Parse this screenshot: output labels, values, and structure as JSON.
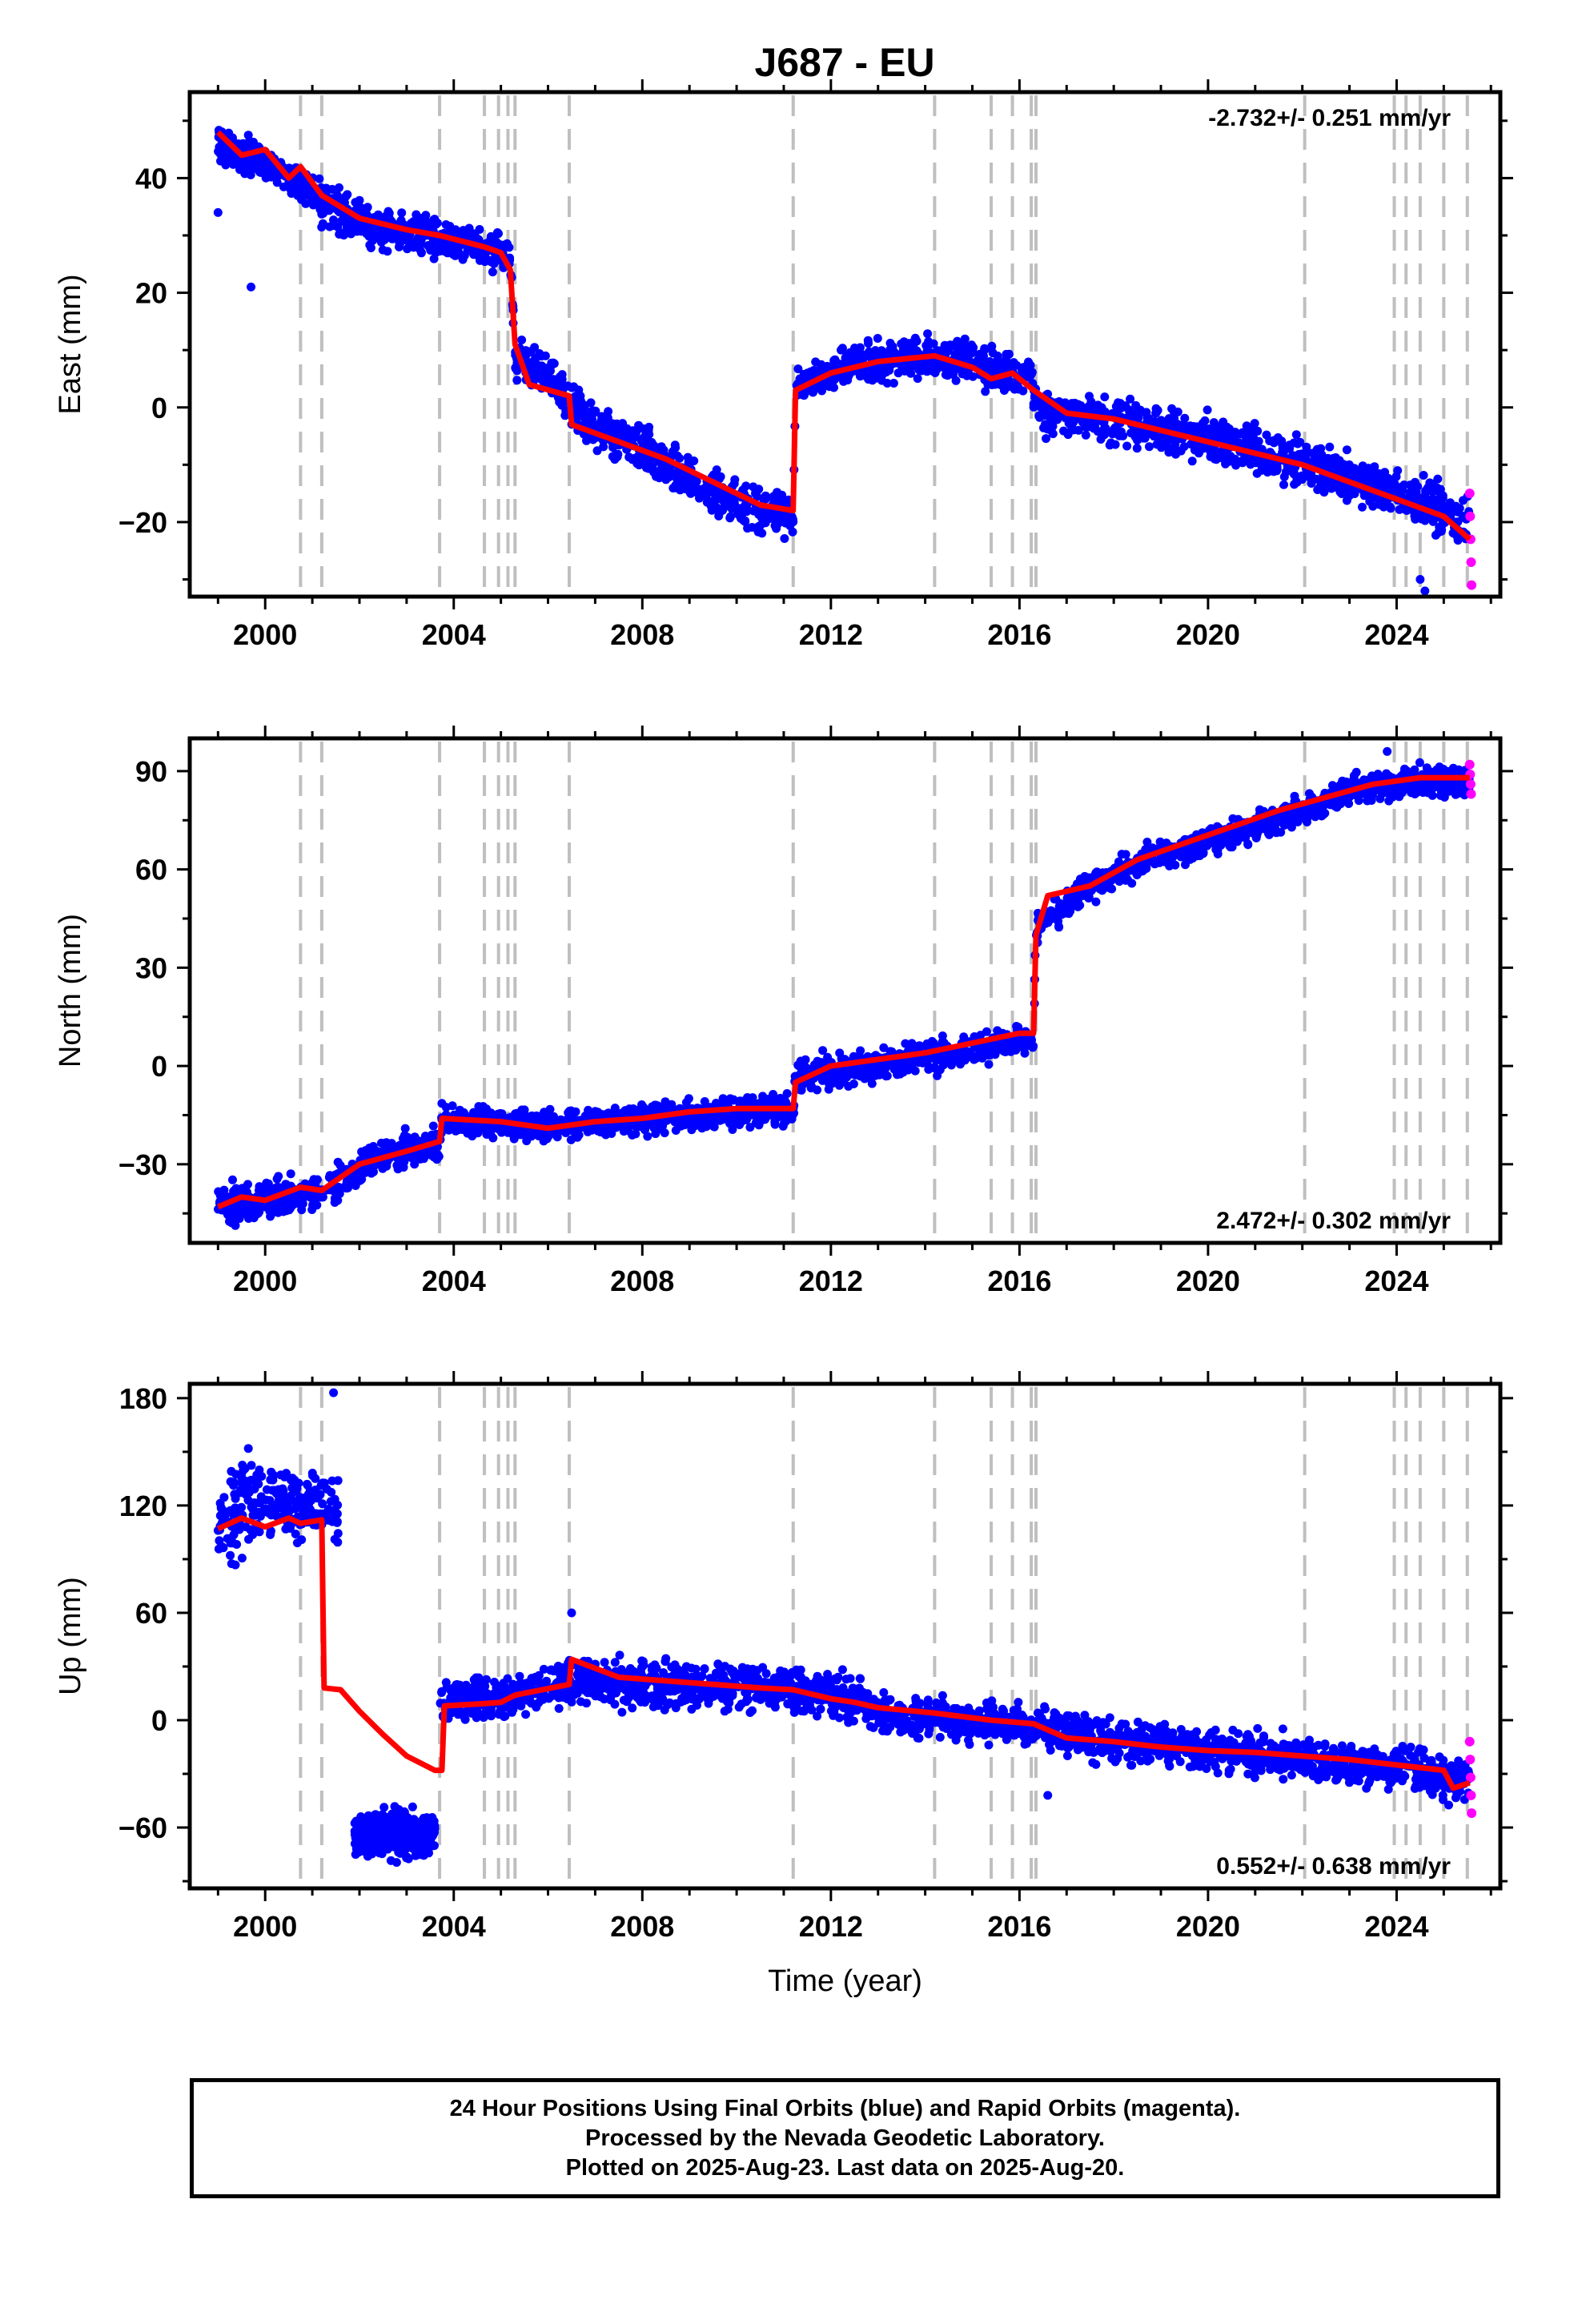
{
  "title": "J687 - EU",
  "colors": {
    "final": "#0000ff",
    "rapid": "#ff00ff",
    "model": "#ff0000",
    "events": "#bfbfbf",
    "frame": "#000000"
  },
  "footer": {
    "line1": "24 Hour Positions Using Final Orbits (blue) and Rapid Orbits (magenta).",
    "line2": "Processed by the Nevada Geodetic Laboratory.",
    "line3": "Plotted on 2025-Aug-23. Last data on 2025-Aug-20."
  },
  "chart_data": [
    {
      "type": "scatter",
      "component": "east",
      "ylabel": "East (mm)",
      "xlabel": "",
      "rate": "-2.732+/- 0.251 mm/yr",
      "rate_position": "top-right",
      "xlim": [
        1998.4,
        2026.2
      ],
      "ylim": [
        -33,
        55
      ],
      "xticks": [
        2000,
        2004,
        2008,
        2012,
        2016,
        2020,
        2024
      ],
      "yticks": [
        -20,
        0,
        20,
        40
      ],
      "ytick_labels": [
        "−20",
        "0",
        "20",
        "40"
      ],
      "events": [
        2000.75,
        2001.2,
        2003.7,
        2004.65,
        2004.95,
        2005.15,
        2005.3,
        2006.45,
        2011.2,
        2014.2,
        2015.4,
        2015.85,
        2016.25,
        2016.35,
        2022.05,
        2023.95,
        2024.2,
        2024.5,
        2025.0,
        2025.5
      ],
      "model": [
        [
          1999.0,
          48
        ],
        [
          1999.5,
          44
        ],
        [
          2000.0,
          45
        ],
        [
          2000.5,
          40
        ],
        [
          2000.75,
          42
        ],
        [
          2001.2,
          37
        ],
        [
          2002.0,
          33
        ],
        [
          2003.0,
          31
        ],
        [
          2003.7,
          30
        ],
        [
          2004.65,
          28
        ],
        [
          2005.0,
          27
        ],
        [
          2005.2,
          24
        ],
        [
          2005.3,
          11
        ],
        [
          2005.6,
          4
        ],
        [
          2006.45,
          2
        ],
        [
          2006.5,
          -3
        ],
        [
          2007.5,
          -6
        ],
        [
          2008.5,
          -9
        ],
        [
          2009.5,
          -13
        ],
        [
          2010.5,
          -17
        ],
        [
          2011.2,
          -18
        ],
        [
          2011.25,
          3
        ],
        [
          2012.0,
          6
        ],
        [
          2013.0,
          8
        ],
        [
          2014.2,
          9
        ],
        [
          2015.0,
          7
        ],
        [
          2015.4,
          5
        ],
        [
          2015.85,
          6
        ],
        [
          2016.3,
          3
        ],
        [
          2017.0,
          -1
        ],
        [
          2018.0,
          -2
        ],
        [
          2019.0,
          -4
        ],
        [
          2020.0,
          -6
        ],
        [
          2021.0,
          -8
        ],
        [
          2022.0,
          -10
        ],
        [
          2023.0,
          -13
        ],
        [
          2024.0,
          -16
        ],
        [
          2025.0,
          -19
        ],
        [
          2025.55,
          -23
        ]
      ],
      "data_envelope": [
        [
          1999.0,
          51,
          41
        ],
        [
          2000.0,
          47,
          38
        ],
        [
          2000.75,
          43,
          34
        ],
        [
          2001.2,
          41,
          30
        ],
        [
          2002.5,
          36,
          26
        ],
        [
          2004.0,
          34,
          24
        ],
        [
          2005.2,
          31,
          22
        ],
        [
          2005.3,
          14,
          4
        ],
        [
          2006.0,
          10,
          0
        ],
        [
          2007.0,
          2,
          -9
        ],
        [
          2008.0,
          -2,
          -13
        ],
        [
          2009.0,
          -7,
          -18
        ],
        [
          2010.0,
          -11,
          -23
        ],
        [
          2011.2,
          -14,
          -24
        ],
        [
          2011.25,
          7,
          0
        ],
        [
          2012.5,
          12,
          3
        ],
        [
          2014.0,
          14,
          4
        ],
        [
          2015.0,
          13,
          3
        ],
        [
          2016.3,
          9,
          -1
        ],
        [
          2016.4,
          5,
          -6
        ],
        [
          2018.0,
          3,
          -8
        ],
        [
          2020.0,
          1,
          -11
        ],
        [
          2022.0,
          -4,
          -15
        ],
        [
          2024.0,
          -9,
          -21
        ],
        [
          2025.55,
          -13,
          -27
        ]
      ],
      "rapid_points": [
        [
          2025.55,
          -15
        ],
        [
          2025.56,
          -19
        ],
        [
          2025.57,
          -23
        ],
        [
          2025.58,
          -27
        ],
        [
          2025.59,
          -31
        ]
      ],
      "outliers": [
        [
          1999.0,
          34
        ],
        [
          1999.7,
          21
        ],
        [
          2024.5,
          -30
        ],
        [
          2024.6,
          -32
        ]
      ]
    },
    {
      "type": "scatter",
      "component": "north",
      "ylabel": "North (mm)",
      "xlabel": "",
      "rate": "2.472+/- 0.302 mm/yr",
      "rate_position": "bottom-right",
      "xlim": [
        1998.4,
        2026.2
      ],
      "ylim": [
        -54,
        100
      ],
      "xticks": [
        2000,
        2004,
        2008,
        2012,
        2016,
        2020,
        2024
      ],
      "yticks": [
        -30,
        0,
        30,
        60,
        90
      ],
      "ytick_labels": [
        "−30",
        "0",
        "30",
        "60",
        "90"
      ],
      "events": [
        2000.75,
        2001.2,
        2003.7,
        2004.65,
        2004.95,
        2005.15,
        2005.3,
        2006.45,
        2011.2,
        2014.2,
        2015.4,
        2015.85,
        2016.25,
        2016.35,
        2022.05,
        2023.95,
        2024.2,
        2024.5,
        2025.0,
        2025.5
      ],
      "model": [
        [
          1999.0,
          -43
        ],
        [
          1999.5,
          -40
        ],
        [
          2000.0,
          -41
        ],
        [
          2000.75,
          -37
        ],
        [
          2001.2,
          -38
        ],
        [
          2002.0,
          -30
        ],
        [
          2003.0,
          -26
        ],
        [
          2003.7,
          -23
        ],
        [
          2003.75,
          -16
        ],
        [
          2005.0,
          -17
        ],
        [
          2006.0,
          -19
        ],
        [
          2007.0,
          -17
        ],
        [
          2008.0,
          -16
        ],
        [
          2009.0,
          -14
        ],
        [
          2010.0,
          -13
        ],
        [
          2011.2,
          -13
        ],
        [
          2011.25,
          -5
        ],
        [
          2012.0,
          0
        ],
        [
          2013.0,
          2
        ],
        [
          2014.0,
          4
        ],
        [
          2015.0,
          7
        ],
        [
          2016.0,
          10
        ],
        [
          2016.3,
          10
        ],
        [
          2016.35,
          40
        ],
        [
          2016.6,
          52
        ],
        [
          2017.5,
          55
        ],
        [
          2018.5,
          63
        ],
        [
          2019.5,
          68
        ],
        [
          2020.5,
          73
        ],
        [
          2021.5,
          78
        ],
        [
          2022.5,
          82
        ],
        [
          2023.5,
          86
        ],
        [
          2024.5,
          88
        ],
        [
          2025.55,
          88
        ]
      ],
      "data_envelope": [
        [
          1999.0,
          -34,
          -50
        ],
        [
          2000.0,
          -33,
          -50
        ],
        [
          2001.2,
          -31,
          -46
        ],
        [
          2002.5,
          -20,
          -35
        ],
        [
          2003.7,
          -17,
          -31
        ],
        [
          2003.75,
          -10,
          -23
        ],
        [
          2006.0,
          -12,
          -25
        ],
        [
          2008.0,
          -10,
          -22
        ],
        [
          2010.0,
          -7,
          -20
        ],
        [
          2011.2,
          -7,
          -20
        ],
        [
          2011.25,
          4,
          -10
        ],
        [
          2013.0,
          7,
          -6
        ],
        [
          2015.0,
          12,
          -2
        ],
        [
          2016.3,
          14,
          3
        ],
        [
          2016.35,
          50,
          35
        ],
        [
          2017.5,
          61,
          49
        ],
        [
          2019.0,
          71,
          58
        ],
        [
          2021.0,
          79,
          66
        ],
        [
          2023.0,
          90,
          78
        ],
        [
          2024.5,
          94,
          80
        ],
        [
          2025.55,
          93,
          80
        ]
      ],
      "rapid_points": [
        [
          2025.55,
          92
        ],
        [
          2025.56,
          89
        ],
        [
          2025.57,
          86
        ],
        [
          2025.58,
          83
        ]
      ],
      "outliers": [
        [
          2023.8,
          96
        ]
      ]
    },
    {
      "type": "scatter",
      "component": "up",
      "ylabel": "Up (mm)",
      "xlabel": "Time (year)",
      "rate": "0.552+/- 0.638 mm/yr",
      "rate_position": "bottom-right",
      "xlim": [
        1998.4,
        2026.2
      ],
      "ylim": [
        -94,
        188
      ],
      "xticks": [
        2000,
        2004,
        2008,
        2012,
        2016,
        2020,
        2024
      ],
      "yticks": [
        -60,
        0,
        60,
        120,
        180
      ],
      "ytick_labels": [
        "−60",
        "0",
        "60",
        "120",
        "180"
      ],
      "events": [
        2000.75,
        2001.2,
        2003.7,
        2004.65,
        2004.95,
        2005.15,
        2005.3,
        2006.45,
        2011.2,
        2014.2,
        2015.4,
        2015.85,
        2016.25,
        2016.35,
        2022.05,
        2023.95,
        2024.2,
        2024.5,
        2025.0,
        2025.5
      ],
      "model": [
        [
          1999.0,
          107
        ],
        [
          1999.5,
          113
        ],
        [
          2000.0,
          108
        ],
        [
          2000.5,
          113
        ],
        [
          2000.75,
          110
        ],
        [
          2001.2,
          112
        ],
        [
          2001.25,
          18
        ],
        [
          2001.6,
          17
        ],
        [
          2002.0,
          5
        ],
        [
          2002.5,
          -8
        ],
        [
          2003.0,
          -20
        ],
        [
          2003.6,
          -28
        ],
        [
          2003.75,
          -28
        ],
        [
          2003.8,
          8
        ],
        [
          2004.5,
          9
        ],
        [
          2005.0,
          10
        ],
        [
          2005.3,
          14
        ],
        [
          2006.45,
          20
        ],
        [
          2006.5,
          34
        ],
        [
          2007.5,
          24
        ],
        [
          2008.5,
          22
        ],
        [
          2009.5,
          20
        ],
        [
          2010.5,
          18
        ],
        [
          2011.2,
          17
        ],
        [
          2012.0,
          12
        ],
        [
          2012.5,
          10
        ],
        [
          2013.0,
          7
        ],
        [
          2014.2,
          4
        ],
        [
          2015.4,
          0
        ],
        [
          2016.3,
          -2
        ],
        [
          2017.0,
          -10
        ],
        [
          2018.0,
          -12
        ],
        [
          2019.0,
          -15
        ],
        [
          2020.0,
          -17
        ],
        [
          2021.0,
          -18
        ],
        [
          2022.0,
          -20
        ],
        [
          2023.0,
          -22
        ],
        [
          2024.0,
          -25
        ],
        [
          2025.0,
          -28
        ],
        [
          2025.2,
          -38
        ],
        [
          2025.55,
          -35
        ]
      ],
      "data_envelope": [
        [
          1999.0,
          135,
          70
        ],
        [
          1999.5,
          160,
          85
        ],
        [
          2000.3,
          155,
          90
        ],
        [
          2001.0,
          148,
          85
        ],
        [
          2001.25,
          150,
          95
        ],
        [
          2001.5,
          140,
          95
        ],
        [
          2003.75,
          28,
          -8
        ],
        [
          2004.5,
          28,
          -6
        ],
        [
          2005.3,
          30,
          -2
        ],
        [
          2006.5,
          40,
          5
        ],
        [
          2008.0,
          38,
          3
        ],
        [
          2010.0,
          36,
          1
        ],
        [
          2011.2,
          35,
          0
        ],
        [
          2012.5,
          30,
          -5
        ],
        [
          2013.0,
          20,
          -12
        ],
        [
          2015.0,
          15,
          -16
        ],
        [
          2016.3,
          12,
          -18
        ],
        [
          2018.0,
          6,
          -28
        ],
        [
          2020.0,
          0,
          -34
        ],
        [
          2022.0,
          -5,
          -38
        ],
        [
          2024.0,
          -10,
          -44
        ],
        [
          2025.55,
          -18,
          -52
        ]
      ],
      "gap_cluster": [
        [
          2001.9,
          -48,
          -85
        ],
        [
          2002.5,
          -45,
          -82
        ],
        [
          2003.1,
          -46,
          -82
        ],
        [
          2003.6,
          -48,
          -80
        ]
      ],
      "rapid_points": [
        [
          2025.55,
          -12
        ],
        [
          2025.56,
          -22
        ],
        [
          2025.57,
          -32
        ],
        [
          2025.58,
          -42
        ],
        [
          2025.59,
          -52
        ]
      ],
      "outliers": [
        [
          2001.45,
          183
        ],
        [
          2006.5,
          60
        ],
        [
          2016.6,
          -42
        ]
      ]
    }
  ]
}
